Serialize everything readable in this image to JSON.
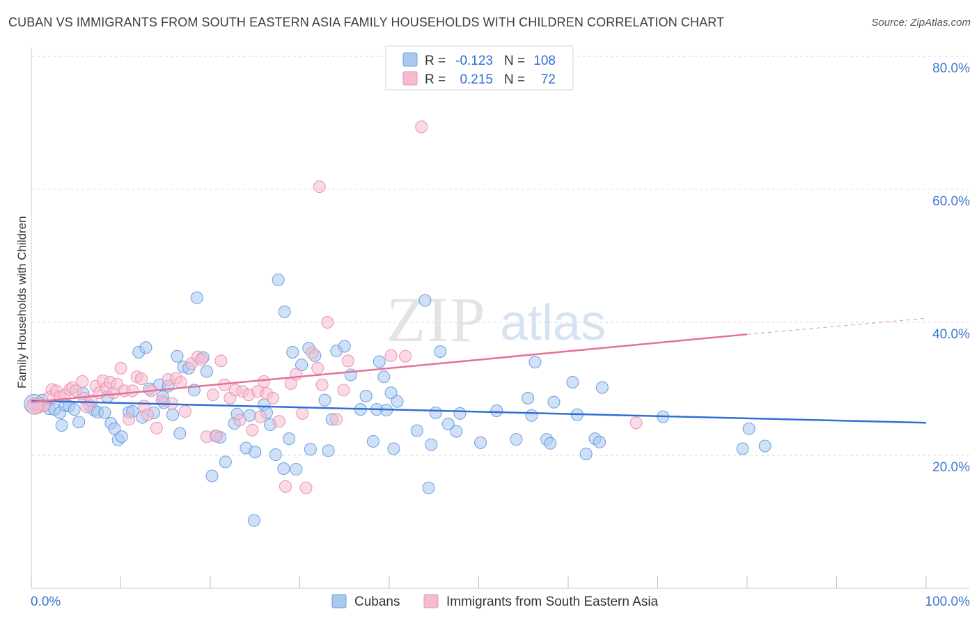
{
  "title": "CUBAN VS IMMIGRANTS FROM SOUTH EASTERN ASIA FAMILY HOUSEHOLDS WITH CHILDREN CORRELATION CHART",
  "source": "Source: ZipAtlas.com",
  "watermark": {
    "zip": "ZIP",
    "atlas": "atlas"
  },
  "legend_box": {
    "rows": [
      {
        "r_label": "R =",
        "r_value": "-0.123",
        "n_label": "N =",
        "n_value": "108"
      },
      {
        "r_label": "R =",
        "r_value": "0.215",
        "n_label": "N =",
        "n_value": "72"
      }
    ]
  },
  "colors": {
    "blue": "#2f6fd4",
    "blue_fill": "#a9c8f0",
    "blue_stroke": "#6a9de0",
    "pink": "#e4709a",
    "pink_fill": "#f5bccf",
    "pink_stroke": "#ea93b1",
    "axis_text": "#3a74d0",
    "grid": "#d8d8d8"
  },
  "chart_data": {
    "type": "scatter",
    "title": "CUBAN VS IMMIGRANTS FROM SOUTH EASTERN ASIA FAMILY HOUSEHOLDS WITH CHILDREN CORRELATION CHART",
    "xlabel": "",
    "ylabel": "Family Households with Children",
    "xlim": [
      0,
      100
    ],
    "ylim": [
      0,
      84
    ],
    "x_tick_labels": [
      "0.0%",
      "100.0%"
    ],
    "y_ticks": [
      20,
      40,
      60,
      80
    ],
    "y_tick_labels": [
      "20.0%",
      "40.0%",
      "60.0%",
      "80.0%"
    ],
    "grid": true,
    "legend": [
      "Cubans",
      "Immigrants from South Eastern Asia"
    ],
    "series": [
      {
        "name": "Cubans",
        "r": -0.123,
        "n": 108,
        "trend": {
          "x0": 0,
          "y0": 28.2,
          "x1": 100,
          "y1": 24.9
        },
        "points": [
          [
            0.5,
            27.8
          ],
          [
            1.2,
            28.3
          ],
          [
            1.5,
            27.5
          ],
          [
            2.0,
            27.0
          ],
          [
            2.6,
            26.9
          ],
          [
            3.2,
            26.4
          ],
          [
            3.4,
            24.5
          ],
          [
            3.8,
            27.5
          ],
          [
            4.2,
            27.4
          ],
          [
            4.8,
            26.9
          ],
          [
            5.3,
            25.0
          ],
          [
            5.8,
            29.3
          ],
          [
            6.5,
            27.5
          ],
          [
            7.0,
            26.8
          ],
          [
            7.4,
            26.5
          ],
          [
            8.2,
            26.4
          ],
          [
            8.5,
            28.8
          ],
          [
            8.9,
            24.8
          ],
          [
            9.3,
            24.0
          ],
          [
            9.7,
            22.3
          ],
          [
            10.1,
            22.8
          ],
          [
            10.9,
            26.5
          ],
          [
            11.3,
            26.6
          ],
          [
            12.0,
            35.5
          ],
          [
            12.4,
            25.7
          ],
          [
            12.8,
            36.2
          ],
          [
            13.2,
            30.0
          ],
          [
            13.7,
            26.4
          ],
          [
            14.3,
            30.6
          ],
          [
            14.7,
            28.8
          ],
          [
            14.8,
            27.9
          ],
          [
            15.3,
            30.4
          ],
          [
            15.8,
            26.1
          ],
          [
            16.3,
            34.9
          ],
          [
            16.6,
            23.3
          ],
          [
            17.0,
            33.3
          ],
          [
            17.6,
            33.1
          ],
          [
            18.2,
            29.8
          ],
          [
            18.5,
            43.7
          ],
          [
            19.2,
            34.7
          ],
          [
            19.6,
            32.6
          ],
          [
            20.2,
            16.9
          ],
          [
            20.6,
            22.9
          ],
          [
            21.1,
            22.7
          ],
          [
            21.7,
            19.0
          ],
          [
            22.7,
            24.8
          ],
          [
            23.0,
            26.2
          ],
          [
            24.0,
            21.1
          ],
          [
            24.4,
            26.0
          ],
          [
            24.9,
            10.2
          ],
          [
            25.0,
            20.5
          ],
          [
            26.0,
            27.6
          ],
          [
            26.3,
            26.4
          ],
          [
            26.7,
            24.6
          ],
          [
            27.3,
            20.1
          ],
          [
            27.6,
            46.4
          ],
          [
            28.3,
            41.6
          ],
          [
            28.2,
            18.0
          ],
          [
            28.8,
            22.5
          ],
          [
            29.2,
            35.5
          ],
          [
            29.6,
            17.9
          ],
          [
            30.2,
            33.6
          ],
          [
            31.0,
            36.1
          ],
          [
            31.2,
            20.9
          ],
          [
            31.7,
            35.0
          ],
          [
            32.8,
            28.3
          ],
          [
            33.2,
            20.7
          ],
          [
            33.6,
            25.4
          ],
          [
            34.1,
            35.7
          ],
          [
            35.0,
            36.4
          ],
          [
            35.7,
            32.1
          ],
          [
            36.8,
            26.9
          ],
          [
            37.4,
            28.9
          ],
          [
            38.2,
            22.1
          ],
          [
            38.6,
            26.9
          ],
          [
            38.9,
            34.1
          ],
          [
            39.4,
            31.8
          ],
          [
            39.7,
            26.8
          ],
          [
            40.2,
            29.4
          ],
          [
            40.5,
            21.0
          ],
          [
            40.9,
            28.1
          ],
          [
            43.1,
            23.7
          ],
          [
            44.4,
            15.1
          ],
          [
            44.0,
            43.3
          ],
          [
            44.7,
            21.6
          ],
          [
            45.2,
            26.4
          ],
          [
            45.7,
            35.6
          ],
          [
            46.6,
            24.7
          ],
          [
            47.5,
            23.6
          ],
          [
            47.9,
            26.3
          ],
          [
            50.2,
            21.9
          ],
          [
            52.0,
            26.7
          ],
          [
            54.2,
            22.4
          ],
          [
            55.5,
            28.6
          ],
          [
            55.9,
            26.0
          ],
          [
            56.3,
            34.0
          ],
          [
            57.6,
            22.4
          ],
          [
            58.0,
            21.8
          ],
          [
            58.4,
            28.0
          ],
          [
            60.5,
            31.0
          ],
          [
            61.0,
            26.1
          ],
          [
            62.0,
            20.2
          ],
          [
            63.0,
            22.5
          ],
          [
            63.5,
            22.0
          ],
          [
            63.8,
            30.2
          ],
          [
            70.6,
            25.8
          ],
          [
            79.5,
            21.0
          ],
          [
            80.2,
            24.0
          ],
          [
            82.0,
            21.4
          ]
        ]
      },
      {
        "name": "Immigrants from South Eastern Asia",
        "r": 0.215,
        "n": 72,
        "trend": {
          "x0": 0,
          "y0": 28.0,
          "x1": 80,
          "y1": 38.2
        },
        "trend_ext": {
          "x0": 80,
          "y0": 38.2,
          "x1": 100,
          "y1": 40.6
        },
        "points": [
          [
            0.3,
            27.6
          ],
          [
            0.9,
            27.3
          ],
          [
            1.4,
            27.5
          ],
          [
            2.0,
            28.7
          ],
          [
            2.3,
            29.9
          ],
          [
            2.8,
            29.7
          ],
          [
            3.2,
            28.8
          ],
          [
            3.7,
            29.0
          ],
          [
            4.3,
            29.9
          ],
          [
            4.6,
            30.2
          ],
          [
            5.0,
            29.7
          ],
          [
            5.7,
            31.1
          ],
          [
            5.9,
            28.6
          ],
          [
            6.2,
            27.3
          ],
          [
            6.7,
            28.2
          ],
          [
            7.2,
            30.4
          ],
          [
            7.6,
            29.4
          ],
          [
            8.0,
            31.2
          ],
          [
            8.4,
            30.1
          ],
          [
            8.8,
            31.0
          ],
          [
            9.2,
            29.4
          ],
          [
            9.6,
            30.7
          ],
          [
            10.0,
            33.1
          ],
          [
            10.4,
            29.7
          ],
          [
            10.9,
            25.4
          ],
          [
            11.3,
            29.7
          ],
          [
            11.8,
            31.8
          ],
          [
            12.3,
            31.5
          ],
          [
            12.6,
            27.4
          ],
          [
            13.0,
            26.1
          ],
          [
            13.4,
            29.7
          ],
          [
            14.0,
            24.1
          ],
          [
            14.6,
            28.2
          ],
          [
            15.3,
            31.4
          ],
          [
            15.7,
            27.8
          ],
          [
            16.2,
            31.6
          ],
          [
            16.7,
            31.0
          ],
          [
            17.2,
            26.6
          ],
          [
            17.9,
            33.8
          ],
          [
            18.6,
            34.8
          ],
          [
            19.0,
            34.4
          ],
          [
            19.6,
            22.8
          ],
          [
            20.3,
            29.1
          ],
          [
            20.7,
            22.9
          ],
          [
            21.2,
            34.2
          ],
          [
            21.6,
            30.6
          ],
          [
            22.2,
            28.6
          ],
          [
            22.8,
            29.8
          ],
          [
            23.3,
            25.3
          ],
          [
            23.6,
            29.6
          ],
          [
            24.3,
            29.1
          ],
          [
            24.7,
            23.8
          ],
          [
            25.3,
            29.6
          ],
          [
            25.6,
            25.8
          ],
          [
            26.0,
            31.1
          ],
          [
            26.3,
            29.3
          ],
          [
            27.0,
            28.6
          ],
          [
            27.7,
            25.1
          ],
          [
            28.4,
            15.3
          ],
          [
            29.0,
            30.8
          ],
          [
            29.6,
            32.2
          ],
          [
            30.3,
            26.3
          ],
          [
            30.7,
            15.1
          ],
          [
            31.4,
            35.4
          ],
          [
            32.0,
            33.1
          ],
          [
            32.5,
            30.6
          ],
          [
            33.1,
            40.0
          ],
          [
            34.1,
            25.4
          ],
          [
            34.9,
            29.8
          ],
          [
            35.4,
            34.2
          ],
          [
            41.8,
            34.9
          ],
          [
            40.2,
            35.0
          ],
          [
            43.6,
            69.4
          ],
          [
            32.2,
            60.4
          ],
          [
            67.6,
            24.9
          ]
        ]
      }
    ]
  },
  "bottom_legend": {
    "items": [
      "Cubans",
      "Immigrants from South Eastern Asia"
    ]
  }
}
